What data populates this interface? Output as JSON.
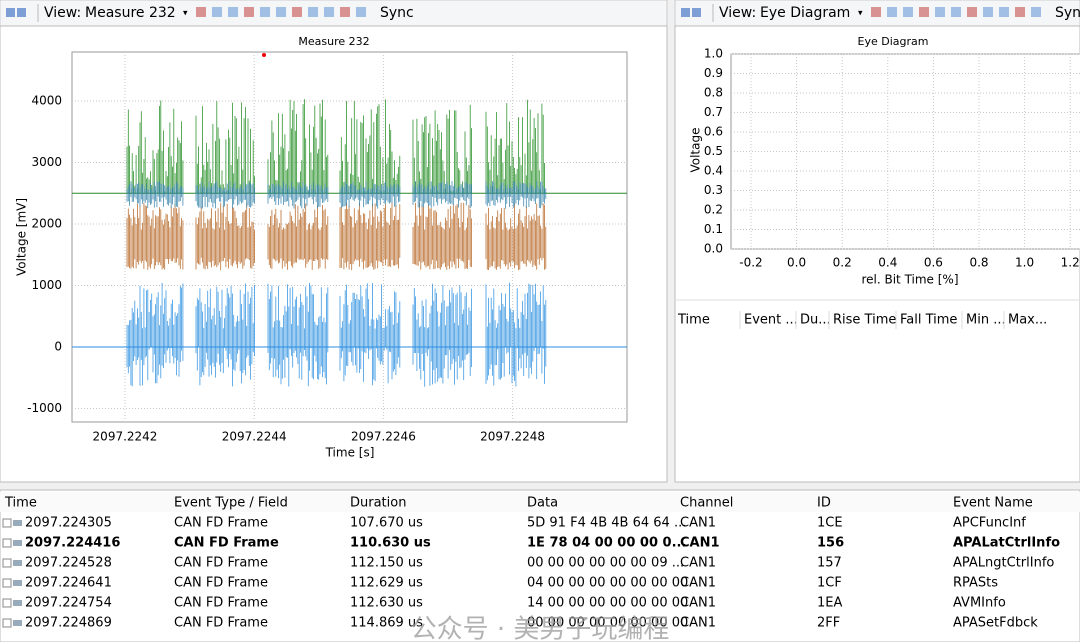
{
  "left_panel": {
    "view_label": "View:",
    "view_name": "Measure 232",
    "sync": "Sync",
    "title": "Measure 232",
    "y_label": "Voltage [mV]",
    "x_label": "Time [s]",
    "yticks": [
      "4000",
      "3000",
      "2000",
      "1000",
      "0",
      "-1000"
    ],
    "xticks": [
      "2097.2242",
      "2097.2244",
      "2097.2246",
      "2097.2248"
    ]
  },
  "right_panel": {
    "view_label": "View:",
    "view_name": "Eye Diagram",
    "sync": "Sync",
    "title": "Eye Diagram",
    "y_label": "Voltage",
    "x_label": "rel. Bit Time [%]",
    "yticks": [
      "1.0",
      "0.9",
      "0.8",
      "0.7",
      "0.6",
      "0.5",
      "0.4",
      "0.3",
      "0.2",
      "0.1",
      "0.0"
    ],
    "xticks": [
      "-0.2",
      "0.0",
      "0.2",
      "0.4",
      "0.6",
      "0.8",
      "1.0",
      "1.2"
    ],
    "columns": [
      "Time",
      "Event ...",
      "Du...",
      "Rise Time",
      "Fall Time",
      "Min ...",
      "Max..."
    ]
  },
  "table": {
    "columns": [
      "Time",
      "Event Type / Field",
      "Duration",
      "Data",
      "Channel",
      "ID",
      "Event Name"
    ],
    "bold_row": 1,
    "rows": [
      [
        "2097.224305",
        "CAN FD Frame",
        "107.670 us",
        "5D 91 F4 4B 4B 64 64 ...",
        "CAN1",
        "1CE",
        "APCFuncInf"
      ],
      [
        "2097.224416",
        "CAN FD Frame",
        "110.630 us",
        "1E 78 04 00 00 00 0...",
        "CAN1",
        "156",
        "APALatCtrlInfo"
      ],
      [
        "2097.224528",
        "CAN FD Frame",
        "112.150 us",
        "00 00 00 00 00 00 09 ...",
        "CAN1",
        "157",
        "APALngtCtrlInfo"
      ],
      [
        "2097.224641",
        "CAN FD Frame",
        "112.629 us",
        "04 00 00 00 00 00 00 00",
        "CAN1",
        "1CF",
        "RPASts"
      ],
      [
        "2097.224754",
        "CAN FD Frame",
        "112.630 us",
        "14 00 00 00 00 00 00 00",
        "CAN1",
        "1EA",
        "AVMInfo"
      ],
      [
        "2097.224869",
        "CAN FD Frame",
        "114.869 us",
        "00 00 00 00 00 00 00 00",
        "CAN1",
        "2FF",
        "APASetFdbck"
      ]
    ]
  },
  "watermark": "公众号 · 美男子玩编程"
}
